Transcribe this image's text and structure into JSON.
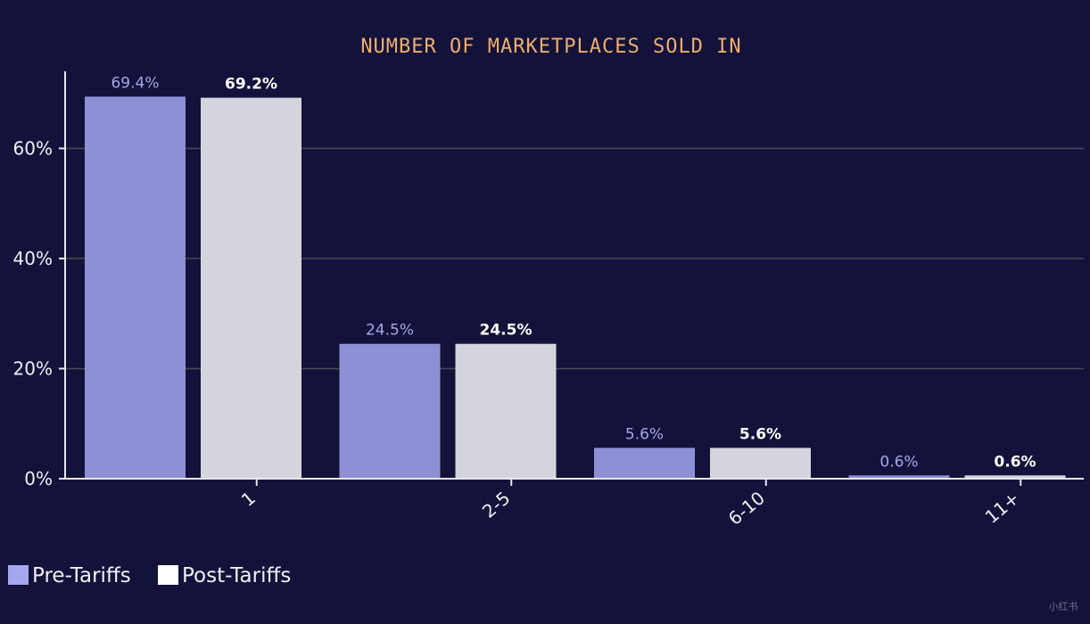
{
  "chart_data": {
    "type": "bar",
    "title": "NUMBER OF MARKETPLACES SOLD IN",
    "xlabel": "",
    "ylabel": "",
    "categories": [
      "1",
      "2-5",
      "6-10",
      "11+"
    ],
    "series": [
      {
        "name": "Pre-Tariffs",
        "values": [
          69.4,
          24.5,
          5.6,
          0.6
        ],
        "labels": [
          "69.4%",
          "24.5%",
          "5.6%",
          "0.6%"
        ],
        "color": "#8f8fd6",
        "label_color": "#a6a6e8"
      },
      {
        "name": "Post-Tariffs",
        "values": [
          69.2,
          24.5,
          5.6,
          0.6
        ],
        "labels": [
          "69.2%",
          "24.5%",
          "5.6%",
          "0.6%"
        ],
        "color": "#d4d4dc",
        "label_color": "#ffffff"
      }
    ],
    "ylim": [
      0,
      74
    ],
    "yticks": [
      0,
      20,
      40,
      60
    ],
    "ytick_labels": [
      "0%",
      "20%",
      "40%",
      "60%"
    ],
    "grid": true,
    "legend": "bottom-left",
    "title_color": "#f0ad6a",
    "axis_color": "#e6e6ec",
    "grid_color": "#4a4a52",
    "text_color": "#f0f0f4"
  },
  "watermark": "小红书"
}
